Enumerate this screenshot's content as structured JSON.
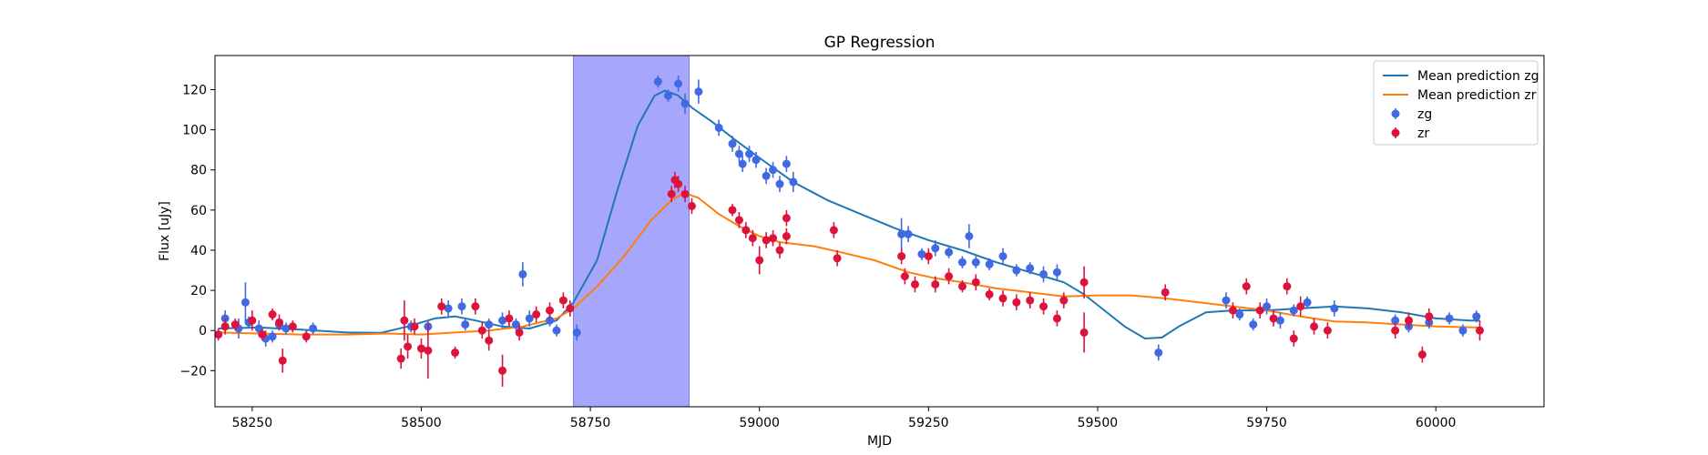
{
  "chart_data": {
    "type": "scatter",
    "title": "GP Regression",
    "xlabel": "MJD",
    "ylabel": "Flux [uJy]",
    "xlim": [
      58195,
      60160
    ],
    "ylim": [
      -38,
      137
    ],
    "xticks": [
      58250,
      58500,
      58750,
      59000,
      59250,
      59500,
      59750,
      60000
    ],
    "yticks": [
      -20,
      0,
      20,
      40,
      60,
      80,
      100,
      120
    ],
    "grid": false,
    "legend_position": "top-right",
    "shaded_region": {
      "x0": 58725,
      "x1": 58896,
      "color": "#a6a6fc"
    },
    "series": [
      {
        "name": "Mean prediction zg",
        "kind": "line",
        "color": "#1f77b4",
        "points": [
          [
            58200,
            1
          ],
          [
            58260,
            1.5
          ],
          [
            58320,
            0.5
          ],
          [
            58390,
            -1
          ],
          [
            58440,
            -1.2
          ],
          [
            58480,
            2
          ],
          [
            58520,
            6
          ],
          [
            58550,
            7
          ],
          [
            58580,
            5
          ],
          [
            58620,
            2
          ],
          [
            58660,
            1
          ],
          [
            58700,
            5
          ],
          [
            58725,
            14
          ],
          [
            58760,
            35
          ],
          [
            58790,
            70
          ],
          [
            58820,
            102
          ],
          [
            58845,
            117
          ],
          [
            58860,
            119.5
          ],
          [
            58880,
            117
          ],
          [
            58900,
            111
          ],
          [
            58930,
            104
          ],
          [
            58960,
            96
          ],
          [
            59000,
            86
          ],
          [
            59050,
            74
          ],
          [
            59100,
            65
          ],
          [
            59150,
            58
          ],
          [
            59200,
            51
          ],
          [
            59250,
            45
          ],
          [
            59300,
            40
          ],
          [
            59350,
            34
          ],
          [
            59400,
            29
          ],
          [
            59450,
            24
          ],
          [
            59480,
            18
          ],
          [
            59510,
            10
          ],
          [
            59540,
            2
          ],
          [
            59570,
            -4
          ],
          [
            59595,
            -3.5
          ],
          [
            59620,
            2
          ],
          [
            59660,
            9
          ],
          [
            59700,
            10
          ],
          [
            59750,
            10
          ],
          [
            59800,
            11
          ],
          [
            59850,
            12
          ],
          [
            59900,
            11
          ],
          [
            59950,
            9
          ],
          [
            60000,
            6
          ],
          [
            60050,
            5
          ],
          [
            60065,
            5
          ]
        ]
      },
      {
        "name": "Mean prediction zr",
        "kind": "line",
        "color": "#ff7f0e",
        "points": [
          [
            58200,
            -1
          ],
          [
            58260,
            -1.5
          ],
          [
            58320,
            -2
          ],
          [
            58390,
            -2
          ],
          [
            58450,
            -1.5
          ],
          [
            58500,
            -2
          ],
          [
            58550,
            -1
          ],
          [
            58600,
            0
          ],
          [
            58650,
            2
          ],
          [
            58700,
            6
          ],
          [
            58725,
            11
          ],
          [
            58760,
            22
          ],
          [
            58800,
            37
          ],
          [
            58840,
            55
          ],
          [
            58870,
            65
          ],
          [
            58890,
            68.5
          ],
          [
            58910,
            66
          ],
          [
            58940,
            58
          ],
          [
            58970,
            52
          ],
          [
            59000,
            47
          ],
          [
            59030,
            44
          ],
          [
            59080,
            42
          ],
          [
            59120,
            39
          ],
          [
            59170,
            35
          ],
          [
            59220,
            29
          ],
          [
            59260,
            26
          ],
          [
            59300,
            24
          ],
          [
            59350,
            21
          ],
          [
            59400,
            19
          ],
          [
            59450,
            17
          ],
          [
            59500,
            17.5
          ],
          [
            59550,
            17.5
          ],
          [
            59600,
            16
          ],
          [
            59650,
            14
          ],
          [
            59700,
            12
          ],
          [
            59750,
            10
          ],
          [
            59800,
            7
          ],
          [
            59850,
            4.5
          ],
          [
            59900,
            4
          ],
          [
            59950,
            3
          ],
          [
            60000,
            2
          ],
          [
            60065,
            1.5
          ]
        ]
      },
      {
        "name": "zg",
        "kind": "errorbar",
        "color": "#4169e1",
        "points": [
          [
            58210,
            6,
            4
          ],
          [
            58230,
            1,
            5
          ],
          [
            58240,
            14,
            10
          ],
          [
            58245,
            4,
            3
          ],
          [
            58260,
            1,
            4
          ],
          [
            58270,
            -4,
            4
          ],
          [
            58280,
            -3,
            3
          ],
          [
            58290,
            3,
            3
          ],
          [
            58300,
            1,
            3
          ],
          [
            58340,
            1,
            3
          ],
          [
            58485,
            2,
            3
          ],
          [
            58510,
            2,
            3
          ],
          [
            58540,
            11,
            4
          ],
          [
            58560,
            12,
            4
          ],
          [
            58565,
            3,
            3
          ],
          [
            58600,
            3,
            3
          ],
          [
            58620,
            5,
            4
          ],
          [
            58640,
            3,
            3
          ],
          [
            58650,
            28,
            6
          ],
          [
            58660,
            6,
            4
          ],
          [
            58690,
            5,
            3
          ],
          [
            58700,
            0,
            3
          ],
          [
            58730,
            -1,
            4
          ],
          [
            58850,
            124,
            3
          ],
          [
            58865,
            117,
            3
          ],
          [
            58880,
            123,
            4
          ],
          [
            58890,
            113,
            5
          ],
          [
            58910,
            119,
            6
          ],
          [
            58940,
            101,
            4
          ],
          [
            58960,
            93,
            4
          ],
          [
            58970,
            88,
            4
          ],
          [
            58975,
            83,
            4
          ],
          [
            58985,
            88,
            4
          ],
          [
            58995,
            85,
            4
          ],
          [
            59010,
            77,
            4
          ],
          [
            59020,
            80,
            4
          ],
          [
            59030,
            73,
            4
          ],
          [
            59040,
            83,
            4
          ],
          [
            59050,
            74,
            5
          ],
          [
            59210,
            48,
            8
          ],
          [
            59220,
            48,
            4
          ],
          [
            59240,
            38,
            3
          ],
          [
            59260,
            41,
            4
          ],
          [
            59280,
            39,
            3
          ],
          [
            59300,
            34,
            3
          ],
          [
            59310,
            47,
            6
          ],
          [
            59320,
            34,
            3
          ],
          [
            59340,
            33,
            3
          ],
          [
            59360,
            37,
            4
          ],
          [
            59380,
            30,
            3
          ],
          [
            59400,
            31,
            3
          ],
          [
            59420,
            28,
            4
          ],
          [
            59440,
            29,
            4
          ],
          [
            59590,
            -11,
            4
          ],
          [
            59690,
            15,
            4
          ],
          [
            59710,
            8,
            3
          ],
          [
            59730,
            3,
            3
          ],
          [
            59750,
            12,
            4
          ],
          [
            59770,
            5,
            4
          ],
          [
            59790,
            10,
            3
          ],
          [
            59810,
            14,
            3
          ],
          [
            59850,
            11,
            4
          ],
          [
            59940,
            5,
            3
          ],
          [
            59960,
            2,
            3
          ],
          [
            59990,
            4,
            3
          ],
          [
            60020,
            6,
            3
          ],
          [
            60040,
            0,
            3
          ],
          [
            60060,
            7,
            3
          ]
        ]
      },
      {
        "name": "zr",
        "kind": "errorbar",
        "color": "#dc143c",
        "points": [
          [
            58200,
            -2,
            3
          ],
          [
            58210,
            2,
            4
          ],
          [
            58225,
            3,
            3
          ],
          [
            58250,
            5,
            5
          ],
          [
            58265,
            -2,
            3
          ],
          [
            58280,
            8,
            3
          ],
          [
            58290,
            4,
            4
          ],
          [
            58295,
            -15,
            6
          ],
          [
            58310,
            2,
            3
          ],
          [
            58330,
            -3,
            3
          ],
          [
            58470,
            -14,
            5
          ],
          [
            58475,
            5,
            10
          ],
          [
            58480,
            -8,
            6
          ],
          [
            58490,
            2,
            4
          ],
          [
            58500,
            -9,
            5
          ],
          [
            58510,
            -10,
            14
          ],
          [
            58530,
            12,
            4
          ],
          [
            58550,
            -11,
            3
          ],
          [
            58580,
            12,
            4
          ],
          [
            58590,
            0,
            4
          ],
          [
            58600,
            -5,
            5
          ],
          [
            58620,
            -20,
            8
          ],
          [
            58630,
            6,
            4
          ],
          [
            58645,
            -1,
            4
          ],
          [
            58670,
            8,
            4
          ],
          [
            58690,
            10,
            4
          ],
          [
            58710,
            15,
            4
          ],
          [
            58720,
            11,
            4
          ],
          [
            58870,
            68,
            4
          ],
          [
            58875,
            75,
            4
          ],
          [
            58880,
            73,
            4
          ],
          [
            58890,
            68,
            4
          ],
          [
            58900,
            62,
            4
          ],
          [
            58960,
            60,
            3
          ],
          [
            58970,
            55,
            4
          ],
          [
            58980,
            50,
            4
          ],
          [
            58990,
            46,
            4
          ],
          [
            59000,
            35,
            7
          ],
          [
            59010,
            45,
            4
          ],
          [
            59020,
            46,
            4
          ],
          [
            59030,
            40,
            4
          ],
          [
            59040,
            47,
            4
          ],
          [
            59040,
            56,
            4
          ],
          [
            59110,
            50,
            4
          ],
          [
            59115,
            36,
            4
          ],
          [
            59210,
            37,
            4
          ],
          [
            59215,
            27,
            4
          ],
          [
            59230,
            23,
            4
          ],
          [
            59250,
            37,
            4
          ],
          [
            59260,
            23,
            4
          ],
          [
            59280,
            27,
            4
          ],
          [
            59300,
            22,
            3
          ],
          [
            59320,
            24,
            4
          ],
          [
            59340,
            18,
            3
          ],
          [
            59360,
            16,
            4
          ],
          [
            59380,
            14,
            4
          ],
          [
            59400,
            15,
            4
          ],
          [
            59420,
            12,
            4
          ],
          [
            59440,
            6,
            4
          ],
          [
            59450,
            15,
            4
          ],
          [
            59480,
            24,
            8
          ],
          [
            59480,
            -1,
            10
          ],
          [
            59600,
            19,
            4
          ],
          [
            59700,
            10,
            4
          ],
          [
            59720,
            22,
            4
          ],
          [
            59740,
            10,
            4
          ],
          [
            59760,
            6,
            4
          ],
          [
            59780,
            22,
            4
          ],
          [
            59790,
            -4,
            4
          ],
          [
            59800,
            12,
            5
          ],
          [
            59820,
            2,
            4
          ],
          [
            59840,
            0,
            4
          ],
          [
            59940,
            0,
            4
          ],
          [
            59960,
            5,
            4
          ],
          [
            59980,
            -12,
            4
          ],
          [
            59990,
            7,
            4
          ],
          [
            60065,
            0,
            5
          ]
        ]
      }
    ]
  }
}
